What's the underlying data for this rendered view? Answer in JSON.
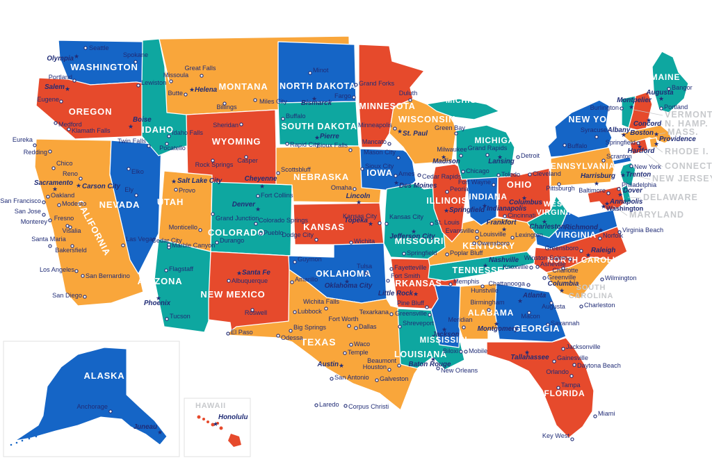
{
  "colors": {
    "blue": "#1565C6",
    "red": "#E64A2C",
    "orange": "#F9A63B",
    "teal": "#0EA7A0",
    "city_text": "#202C76",
    "gray_label": "#C7C9CC",
    "border": "#FFFFFF",
    "inset_border": "#E0E0E0"
  },
  "states": [
    {
      "id": "wa",
      "label": "WASHINGTON",
      "color": "blue",
      "capital": "Olympia",
      "cities": [
        "Seattle",
        "Spokane"
      ]
    },
    {
      "id": "or",
      "label": "OREGON",
      "color": "red",
      "capital": "Salem",
      "cities": [
        "Portland",
        "Eugene",
        "Medford",
        "Klamath Falls"
      ]
    },
    {
      "id": "ca",
      "label": "CALIFORNIA",
      "color": "orange",
      "capital": "Sacramento",
      "cities": [
        "Eureka",
        "Redding",
        "Chico",
        "Oakland",
        "San Francisco",
        "Modesto",
        "San Jose",
        "Monterey",
        "Fresno",
        "Visalia",
        "Santa Maria",
        "Bakersfield",
        "Los Angeles",
        "San Bernardino",
        "San Diego"
      ]
    },
    {
      "id": "nv",
      "label": "NEVADA",
      "color": "blue",
      "capital": "Carson City",
      "cities": [
        "Reno",
        "Elko",
        "Ely",
        "Las Vegas"
      ]
    },
    {
      "id": "id",
      "label": "IDAHO",
      "color": "teal",
      "capital": "Boise",
      "cities": [
        "Lewiston",
        "Idaho Falls",
        "Twin Falls",
        "Pocatello"
      ]
    },
    {
      "id": "mt",
      "label": "MONTANA",
      "color": "orange",
      "capital": "Helena",
      "cities": [
        "Missoula",
        "Great Falls",
        "Butte",
        "Billings",
        "Miles City"
      ]
    },
    {
      "id": "wy",
      "label": "WYOMING",
      "color": "red",
      "capital": "Cheyenne",
      "cities": [
        "Sheridan",
        "Casper",
        "Rock Springs"
      ]
    },
    {
      "id": "ut",
      "label": "UTAH",
      "color": "orange",
      "capital": "Salt Lake City",
      "cities": [
        "Provo",
        "Cedar City",
        "Monticello"
      ]
    },
    {
      "id": "co",
      "label": "COLORADO",
      "color": "teal",
      "capital": "Denver",
      "cities": [
        "Fort Collins",
        "Grand Junction",
        "Colorado Springs",
        "Pueblo",
        "Durango"
      ]
    },
    {
      "id": "az",
      "label": "ARIZONA",
      "color": "teal",
      "capital": "Phoenix",
      "cities": [
        "Marble Canyon",
        "Flagstaff",
        "Tucson"
      ]
    },
    {
      "id": "nm",
      "label": "NEW MEXICO",
      "color": "red",
      "capital": "Santa Fe",
      "cities": [
        "Albuquerque",
        "Roswell"
      ]
    },
    {
      "id": "nd",
      "label": "NORTH DAKOTA",
      "color": "blue",
      "capital": "Bismarck",
      "cities": [
        "Minot",
        "Grand Forks",
        "Fargo"
      ]
    },
    {
      "id": "sd",
      "label": "SOUTH DAKOTA",
      "color": "teal",
      "capital": "Pierre",
      "cities": [
        "Buffalo",
        "Rapid City",
        "Sioux Falls"
      ]
    },
    {
      "id": "ne",
      "label": "NEBRASKA",
      "color": "orange",
      "capital": "Lincoln",
      "cities": [
        "Scottsbluff",
        "Omaha"
      ]
    },
    {
      "id": "ks",
      "label": "KANSAS",
      "color": "red",
      "capital": "Topeka",
      "cities": [
        "Kansas City",
        "Wichita",
        "Dodge City"
      ]
    },
    {
      "id": "ok",
      "label": "OKLAHOMA",
      "color": "blue",
      "capital": "Oklahoma City",
      "cities": [
        "Guymon",
        "Tulsa"
      ]
    },
    {
      "id": "tx",
      "label": "TEXAS",
      "color": "orange",
      "capital": "Austin",
      "cities": [
        "Amarillo",
        "Wichita Falls",
        "Lubbock",
        "Fort Worth",
        "Dallas",
        "Big Springs",
        "Odessa",
        "El Paso",
        "Waco",
        "Temple",
        "San Antonio",
        "Houston",
        "Beaumont",
        "Galveston",
        "Laredo",
        "Corpus Christi",
        "Texarkana"
      ]
    },
    {
      "id": "mn",
      "label": "MINNESOTA",
      "color": "red",
      "capital": "St. Paul",
      "cities": [
        "Duluth",
        "Minneapolis",
        "Mancato"
      ]
    },
    {
      "id": "ia",
      "label": "IOWA",
      "color": "blue",
      "capital": "Des Moines",
      "cities": [
        "Mason City",
        "Sioux City",
        "Ames",
        "Cedar Rapids"
      ]
    },
    {
      "id": "mo",
      "label": "MISSOURI",
      "color": "teal",
      "capital": "Jefferson City",
      "cities": [
        "Kansas City",
        "St. Louis",
        "Springfield",
        "Poplar Bluff"
      ]
    },
    {
      "id": "ar",
      "label": "ARKANSAS",
      "color": "red",
      "capital": "Little Rock",
      "cities": [
        "Fayetteville",
        "Fort Smith",
        "Pine Bluff",
        "Greensville"
      ]
    },
    {
      "id": "la",
      "label": "LOUISIANA",
      "color": "teal",
      "capital": "Baton Rouge",
      "cities": [
        "Shreveport",
        "New Orleans"
      ]
    },
    {
      "id": "ms",
      "label": "MISSISSIPI",
      "color": "blue",
      "capital": "Jackson",
      "cities": [
        "Meridian",
        "Biloxi"
      ]
    },
    {
      "id": "al",
      "label": "ALABAMA",
      "color": "orange",
      "capital": "Montgomery",
      "cities": [
        "Hunstville",
        "Birmingham",
        "Mobile"
      ]
    },
    {
      "id": "ga",
      "label": "GEORGIA",
      "color": "blue",
      "capital": "Atlanta",
      "cities": [
        "Augusta",
        "Macon",
        "Savannah"
      ]
    },
    {
      "id": "fl",
      "label": "FLORIDA",
      "color": "red",
      "capital": "Tallahassee",
      "cities": [
        "Jacksonville",
        "Gainesville",
        "Daytona Beach",
        "Orlando",
        "Tampa",
        "Miami",
        "Key West"
      ]
    },
    {
      "id": "tn",
      "label": "TENNESSEE",
      "color": "teal",
      "capital": "Nashville",
      "cities": [
        "Knoxville",
        "Memphis",
        "Chattanooga"
      ]
    },
    {
      "id": "ky",
      "label": "KENTUCKY",
      "color": "orange",
      "capital": "Frankfort",
      "cities": [
        "Louisville",
        "Lexington",
        "Owensboro"
      ]
    },
    {
      "id": "il",
      "label": "ILLINOIS",
      "color": "red",
      "capital": "Springfield",
      "cities": [
        "Peoria",
        "Chicago"
      ]
    },
    {
      "id": "in",
      "label": "INDIANA",
      "color": "blue",
      "capital": "Indianapolis",
      "cities": [
        "Fort Wayne",
        "Evansville"
      ]
    },
    {
      "id": "oh",
      "label": "OHIO",
      "color": "red",
      "capital": "Columbus",
      "cities": [
        "Toledo",
        "Cleveland",
        "Cincinnati"
      ]
    },
    {
      "id": "mi",
      "label": "MICHIGAN",
      "color": "teal",
      "capital": "Lansing",
      "cities": [
        "Grand Rapids",
        "Detroit"
      ]
    },
    {
      "id": "wi",
      "label": "WISCONSIN",
      "color": "orange",
      "capital": "Madison",
      "cities": [
        "Green Bay",
        "Milwaukee"
      ]
    },
    {
      "id": "ny",
      "label": "NEW YORK",
      "color": "blue",
      "capital": "Albany",
      "cities": [
        "Buffalo",
        "Syracuse",
        "New York"
      ]
    },
    {
      "id": "pa",
      "label": "PENNSYLVANIA",
      "color": "orange",
      "capital": "Harrisburg",
      "cities": [
        "Scranton",
        "Pittsburgh",
        "Philadelphia"
      ]
    },
    {
      "id": "nj",
      "label": "",
      "color": "teal",
      "capital": "Trenton",
      "cities": []
    },
    {
      "id": "de",
      "label": "",
      "color": "teal",
      "capital": "Dover",
      "cities": []
    },
    {
      "id": "md",
      "label": "",
      "color": "red",
      "capital": "Annapolis",
      "cities": [
        "Baltimore"
      ]
    },
    {
      "id": "wv",
      "label": "WEST VIRGINIA",
      "color": "teal",
      "capital": "Charleston",
      "cities": []
    },
    {
      "id": "va",
      "label": "VIRGINIA",
      "color": "blue",
      "capital": "Richmond",
      "cities": [
        "Norfolk",
        "Virginia Beach"
      ]
    },
    {
      "id": "nc",
      "label": "NORTH CAROLINA",
      "color": "red",
      "capital": "Raleigh",
      "cities": [
        "Greensboro",
        "Winston-Salem",
        "Asheville",
        "Charlotte",
        "Wilmington"
      ]
    },
    {
      "id": "sc",
      "label": "SOUTH CAROLINA",
      "color": "orange",
      "capital": "Columbia",
      "cities": [
        "Greenville",
        "Charleston"
      ]
    },
    {
      "id": "vt",
      "label": "",
      "color": "teal",
      "capital": "Montpelier",
      "cities": [
        "Burlington"
      ]
    },
    {
      "id": "nh",
      "label": "",
      "color": "red",
      "capital": "Concord",
      "cities": []
    },
    {
      "id": "ma",
      "label": "",
      "color": "orange",
      "capital": "Boston",
      "cities": [
        "Springfield"
      ]
    },
    {
      "id": "ri",
      "label": "",
      "color": "orange",
      "capital": "Providence",
      "cities": []
    },
    {
      "id": "ct",
      "label": "",
      "color": "red",
      "capital": "Hartford",
      "cities": []
    },
    {
      "id": "me",
      "label": "MAINE",
      "color": "teal",
      "capital": "Augusta",
      "cities": [
        "Bangor",
        "Portland"
      ]
    }
  ],
  "ocean_labels": [
    "VERMONT",
    "N. HAMP.",
    "MASS.",
    "RHODE I.",
    "CONNECT.",
    "NEW JERSEY",
    "DELAWARE",
    "MARYLAND"
  ],
  "insets": [
    {
      "id": "alaska",
      "label": "ALASKA",
      "label_style": "white",
      "color": "blue",
      "capital": "Juneau",
      "cities": [
        "Anchorage"
      ]
    },
    {
      "id": "hawaii",
      "label": "HAWAII",
      "label_style": "gray",
      "color": "red",
      "capital": "Honolulu",
      "cities": []
    }
  ],
  "dc": {
    "label": "Washington"
  }
}
